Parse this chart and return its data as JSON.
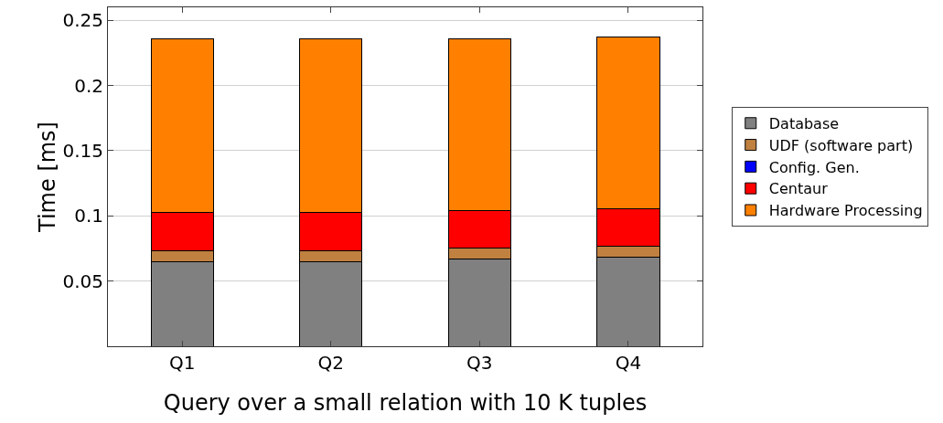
{
  "chart_data": {
    "type": "bar",
    "stacked": true,
    "xlabel": "Query over a small relation with 10 K tuples",
    "ylabel": "Time [ms]",
    "categories": [
      "Q1",
      "Q2",
      "Q3",
      "Q4"
    ],
    "series": [
      {
        "name": "Database",
        "color": "#808080",
        "values": [
          0.065,
          0.065,
          0.067,
          0.068
        ]
      },
      {
        "name": "UDF (software part)",
        "color": "#c08040",
        "values": [
          0.0085,
          0.0085,
          0.008,
          0.0085
        ]
      },
      {
        "name": "Config. Gen.",
        "color": "#0000ff",
        "values": [
          0,
          0,
          0,
          0
        ]
      },
      {
        "name": "Centaur",
        "color": "#ff0000",
        "values": [
          0.029,
          0.029,
          0.029,
          0.029
        ]
      },
      {
        "name": "Hardware Processing",
        "color": "#ff8000",
        "values": [
          0.133,
          0.133,
          0.132,
          0.132
        ]
      }
    ],
    "ylim": [
      0,
      0.26
    ],
    "yticks": [
      0.05,
      0.1,
      0.15,
      0.2,
      0.25
    ],
    "grid": "y",
    "legend": "right"
  }
}
